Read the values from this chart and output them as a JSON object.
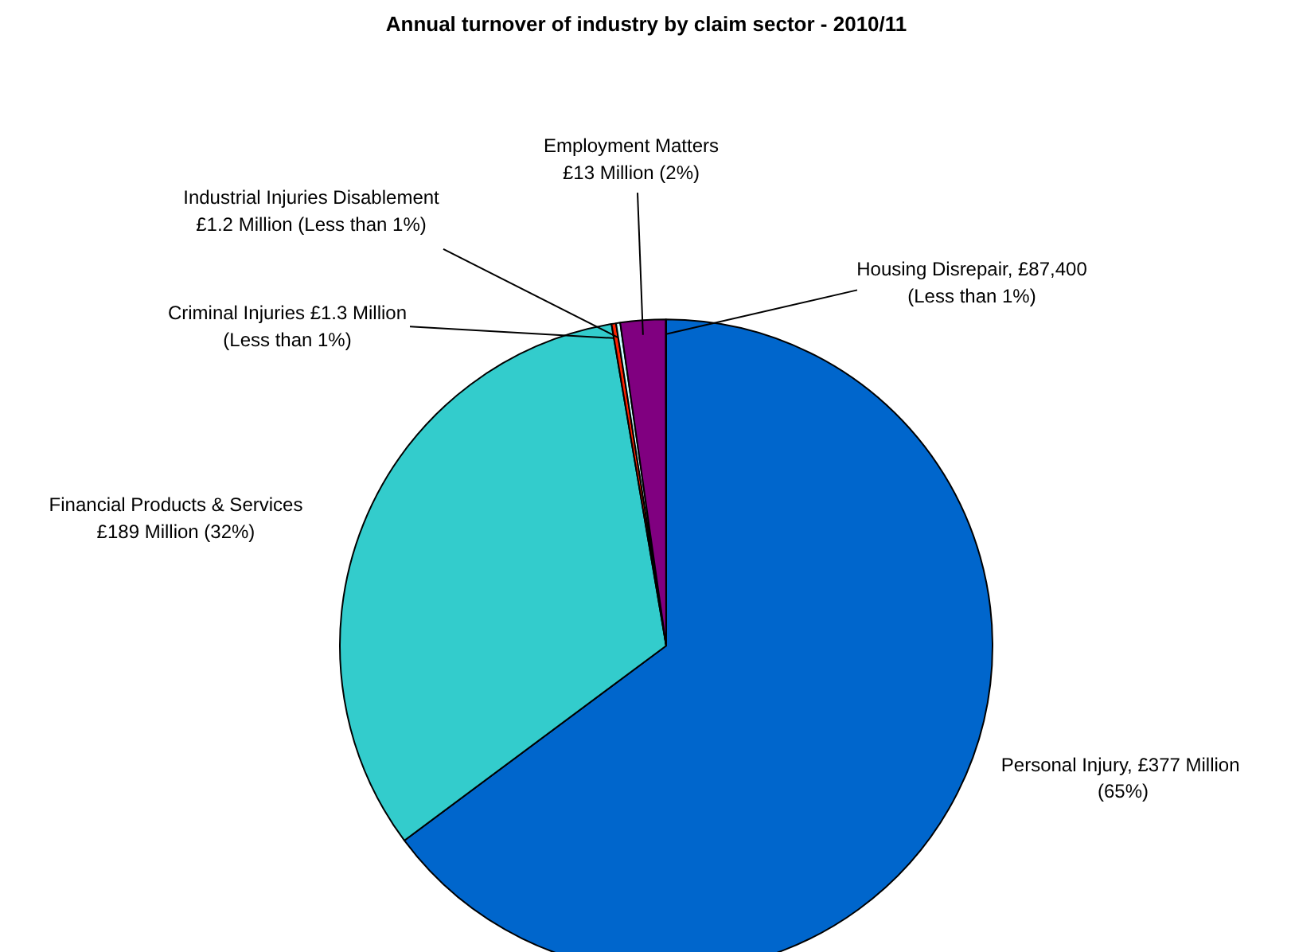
{
  "chart_data": {
    "type": "pie",
    "title": "Annual turnover of industry by claim sector - 2010/11",
    "categories": [
      "Personal Injury,  £377 Million\n(65%)",
      "Financial Products & Services\n£189 Million (32%)",
      "Criminal Injuries £1.3 Million\n(Less than 1%)",
      "Industrial Injuries Disablement\n£1.2 Million (Less than 1%)",
      "Employment Matters\n£13 Million (2%)",
      "Housing Disrepair, £87,400\n(Less than 1%)"
    ],
    "values": [
      377,
      189,
      1.3,
      1.2,
      13,
      0.0874
    ],
    "colors": [
      "#0066cc",
      "#33cccc",
      "#ff2200",
      "#ccffff",
      "#800080",
      "#0066cc"
    ]
  }
}
